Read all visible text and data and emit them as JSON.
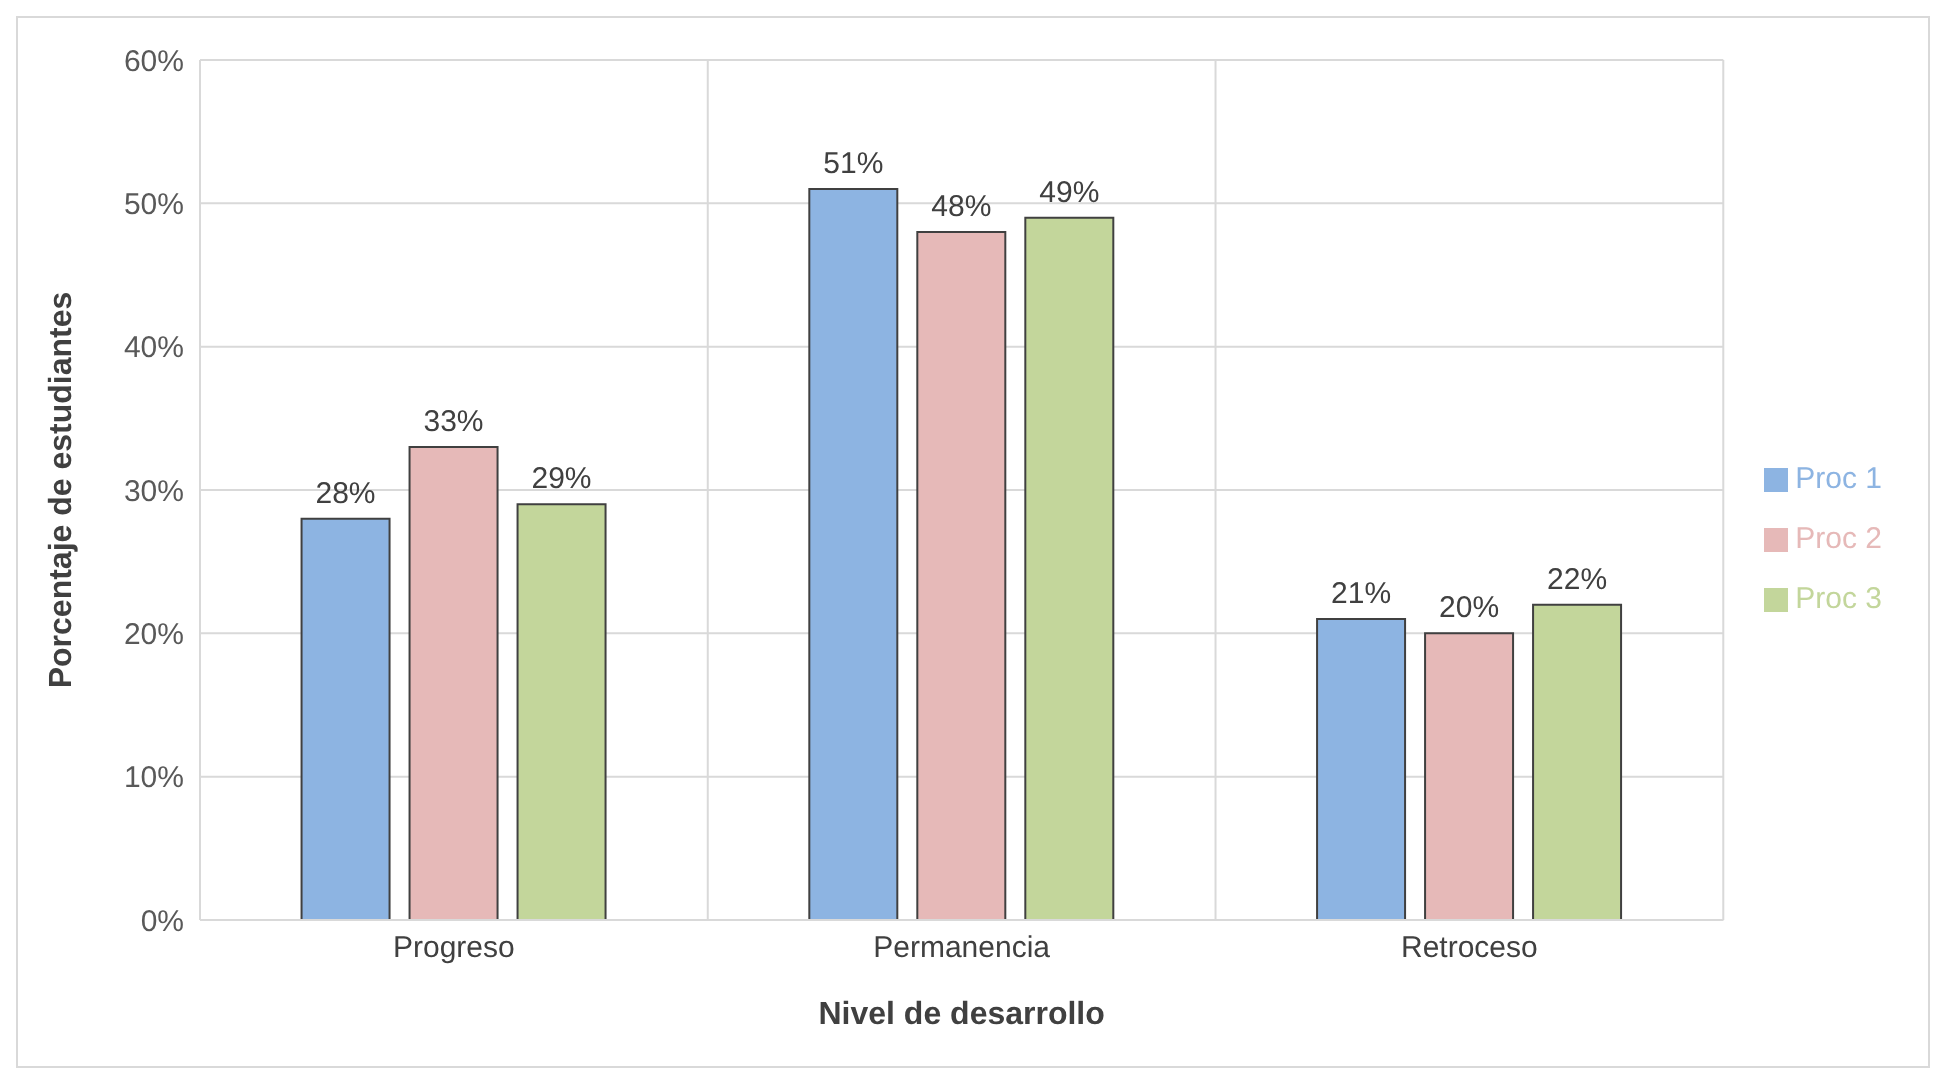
{
  "chart_data": {
    "type": "bar",
    "xlabel": "Nivel de desarrollo",
    "ylabel": "Porcentaje de estudiantes",
    "categories": [
      "Progreso",
      "Permanencia",
      "Retroceso"
    ],
    "series": [
      {
        "name": "Proc 1",
        "color": "#8db4e2",
        "values": [
          28,
          51,
          21
        ],
        "value_labels": [
          "28%",
          "51%",
          "21%"
        ]
      },
      {
        "name": "Proc 2",
        "color": "#e6b9b8",
        "values": [
          33,
          48,
          20
        ],
        "value_labels": [
          "33%",
          "48%",
          "20%"
        ]
      },
      {
        "name": "Proc 3",
        "color": "#c3d69b",
        "values": [
          29,
          49,
          22
        ],
        "value_labels": [
          "29%",
          "49%",
          "22%"
        ]
      }
    ],
    "ylim": [
      0,
      60
    ],
    "yticks": [
      {
        "value": 0,
        "label": "0%"
      },
      {
        "value": 10,
        "label": "10%"
      },
      {
        "value": 20,
        "label": "20%"
      },
      {
        "value": 30,
        "label": "30%"
      },
      {
        "value": 40,
        "label": "40%"
      },
      {
        "value": 50,
        "label": "50%"
      },
      {
        "value": 60,
        "label": "60%"
      }
    ],
    "grid": true,
    "legend": "right"
  }
}
